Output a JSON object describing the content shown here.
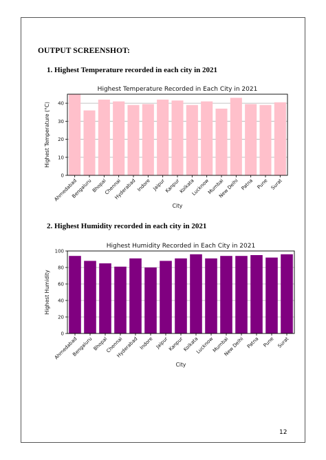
{
  "page": {
    "heading": "OUTPUT SCREENSHOT:",
    "page_number": "12"
  },
  "sections": [
    {
      "title": "1.  Highest Temperature recorded in each city in 2021"
    },
    {
      "title": "2.  Highest Humidity recorded in each city in 2021"
    }
  ],
  "chart_data": [
    {
      "type": "bar",
      "title": "Highest Temperature Recorded in Each City in 2021",
      "xlabel": "City",
      "ylabel": "Highest Temperature (°C)",
      "categories": [
        "Ahmedabad",
        "Bengaluru",
        "Bhopal",
        "Chennai",
        "Hyderabad",
        "Indore",
        "Jaipur",
        "Kanpur",
        "Kolkata",
        "Lucknow",
        "Mumbai",
        "New Delhi",
        "Patna",
        "Pune",
        "Surat"
      ],
      "values": [
        45,
        36,
        42,
        41,
        39,
        39.5,
        42,
        41.5,
        39,
        41,
        37,
        43,
        39.5,
        39,
        40.5
      ],
      "ylim": [
        0,
        45
      ],
      "yticks": [
        0,
        10,
        20,
        30,
        40
      ],
      "bar_color": "#ffc0cb",
      "grid": true
    },
    {
      "type": "bar",
      "title": "Highest Humidity Recorded in Each City in 2021",
      "xlabel": "City",
      "ylabel": "Highest Humidity",
      "categories": [
        "Ahmedabad",
        "Bengaluru",
        "Bhopal",
        "Chennai",
        "Hyderabad",
        "Indore",
        "Jaipur",
        "Kanpur",
        "Kolkata",
        "Lucknow",
        "Mumbai",
        "New Delhi",
        "Patna",
        "Pune",
        "Surat"
      ],
      "values": [
        94,
        88,
        85,
        81,
        91,
        80,
        88,
        91,
        96,
        91,
        94,
        94,
        95,
        92,
        96
      ],
      "ylim": [
        0,
        100
      ],
      "yticks": [
        0,
        20,
        40,
        60,
        80,
        100
      ],
      "bar_color": "#800080",
      "grid": true
    }
  ]
}
